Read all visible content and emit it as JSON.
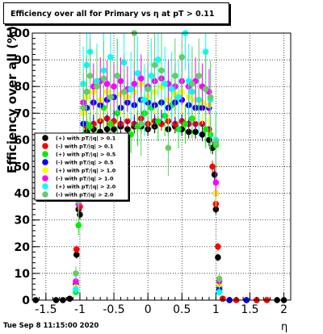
{
  "title": "Efficiency over all for Primary vs   η at pT > 0.11",
  "timestamp": "Tue Sep  8 11:15:00 2020",
  "chart_data": {
    "type": "scatter",
    "xlabel": "η",
    "ylabel": "Efficiency over all (%)",
    "xlim": [
      -1.7,
      2.1
    ],
    "ylim": [
      0,
      100
    ],
    "xticks": [
      -1.5,
      -1,
      -0.5,
      0,
      0.5,
      1,
      1.5,
      2
    ],
    "xtick_labels": [
      "-1.5",
      "-1",
      "-0.5",
      "0",
      "0.5",
      "1",
      "1.5",
      "2"
    ],
    "yticks": [
      0,
      10,
      20,
      30,
      40,
      50,
      60,
      70,
      80,
      90,
      100
    ],
    "ytick_labels": [
      "0",
      "10",
      "20",
      "30",
      "40",
      "50",
      "60",
      "70",
      "80",
      "90",
      "100"
    ],
    "grid": true,
    "legend_position": "left-middle",
    "series": [
      {
        "name": "(+) with pT/|q| > 0.1",
        "color": "#000000",
        "x": [
          -1.65,
          -1.35,
          -1.25,
          -1.15,
          -1.05,
          -1.02,
          -1.0,
          -0.95,
          -0.9,
          -0.8,
          -0.7,
          -0.6,
          -0.5,
          -0.4,
          -0.3,
          -0.2,
          -0.1,
          0,
          0.1,
          0.2,
          0.3,
          0.4,
          0.5,
          0.6,
          0.7,
          0.8,
          0.9,
          0.95,
          0.98,
          1.0,
          1.03,
          1.05,
          1.1,
          1.2,
          1.3,
          1.45,
          1.6,
          1.75,
          1.9,
          2.0
        ],
        "y": [
          0,
          0,
          0,
          0.5,
          17,
          34,
          32,
          58,
          63,
          64,
          63,
          64,
          64,
          65,
          64,
          65,
          65,
          64,
          65,
          66,
          64,
          65,
          64,
          63,
          63,
          62,
          60,
          57,
          47,
          34,
          16,
          3,
          0.5,
          0,
          0,
          0,
          0,
          0,
          0,
          0
        ]
      },
      {
        "name": "(-) with pT/|q| > 0.1",
        "color": "#ff0000",
        "x": [
          -1.05,
          -1.0,
          -0.95,
          -0.9,
          -0.8,
          -0.7,
          -0.6,
          -0.5,
          -0.4,
          -0.3,
          -0.2,
          -0.1,
          0,
          0.1,
          0.2,
          0.3,
          0.4,
          0.5,
          0.6,
          0.7,
          0.8,
          0.9,
          0.95,
          1.0,
          1.03,
          1.05,
          1.1,
          1.2,
          1.3,
          1.45,
          1.6,
          1.75
        ],
        "y": [
          19,
          35,
          61,
          65,
          66,
          67,
          68,
          67,
          66,
          67,
          66,
          68,
          66,
          67,
          66,
          67,
          66,
          67,
          66,
          66,
          66,
          64,
          50,
          36,
          20,
          5,
          0.5,
          0,
          0,
          0,
          0,
          0
        ]
      },
      {
        "name": "(+) with pT/|q| > 0.5",
        "color": "#00ee00",
        "x": [
          -1.06,
          -1.02,
          -0.95,
          -0.9,
          -0.85,
          -0.75,
          -0.65,
          -0.55,
          -0.45,
          -0.35,
          -0.25,
          -0.15,
          -0.05,
          0.05,
          0.15,
          0.25,
          0.35,
          0.45,
          0.55,
          0.65,
          0.75,
          0.85,
          0.92,
          1.0,
          1.05
        ],
        "y": [
          3,
          28,
          62,
          66,
          65,
          60,
          72,
          66,
          70,
          78,
          62,
          65,
          70,
          72,
          67,
          69,
          73,
          64,
          66,
          68,
          72,
          64,
          62,
          58,
          5
        ]
      },
      {
        "name": "(-) with pT/|q| > 0.5",
        "color": "#0000ff",
        "x": [
          -1.06,
          -1.02,
          -0.95,
          -0.9,
          -0.8,
          -0.7,
          -0.6,
          -0.5,
          -0.4,
          -0.3,
          -0.2,
          -0.1,
          0,
          0.1,
          0.2,
          0.3,
          0.4,
          0.5,
          0.6,
          0.7,
          0.8,
          0.9,
          1.0,
          1.05,
          1.2,
          1.45
        ],
        "y": [
          6,
          38,
          66,
          72,
          74,
          73,
          75,
          76,
          72,
          74,
          73,
          75,
          74,
          73,
          74,
          72,
          74,
          75,
          73,
          72,
          72,
          72,
          40,
          4,
          0,
          0
        ]
      },
      {
        "name": "(+) with pT/|q| > 1.0",
        "color": "#ffff00",
        "x": [
          -1.06,
          -1.02,
          -0.95,
          -0.9,
          -0.8,
          -0.7,
          -0.6,
          -0.5,
          -0.4,
          -0.3,
          -0.2,
          -0.1,
          0,
          0.1,
          0.2,
          0.3,
          0.4,
          0.5,
          0.6,
          0.7,
          0.8,
          0.9,
          1.0,
          1.05
        ],
        "y": [
          5,
          38,
          70,
          76,
          78,
          75,
          78,
          80,
          77,
          76,
          78,
          81,
          76,
          78,
          80,
          75,
          77,
          78,
          76,
          75,
          74,
          73,
          40,
          6
        ]
      },
      {
        "name": "(-) with pT/|q| > 1.0",
        "color": "#ff00ff",
        "x": [
          -1.06,
          -1.02,
          -0.95,
          -0.9,
          -0.8,
          -0.7,
          -0.6,
          -0.5,
          -0.4,
          -0.3,
          -0.2,
          -0.1,
          0,
          0.1,
          0.2,
          0.3,
          0.4,
          0.5,
          0.6,
          0.7,
          0.8,
          0.9,
          1.0,
          1.05
        ],
        "y": [
          7,
          36,
          74,
          78,
          80,
          82,
          81,
          80,
          82,
          79,
          81,
          83,
          80,
          82,
          83,
          81,
          80,
          82,
          80,
          82,
          80,
          78,
          44,
          7
        ]
      },
      {
        "name": "(+) with pT/|q| > 2.0",
        "color": "#00ffff",
        "x": [
          -1.06,
          -1.02,
          -0.95,
          -0.9,
          -0.85,
          -0.75,
          -0.65,
          -0.55,
          -0.45,
          -0.35,
          -0.25,
          -0.15,
          -0.05,
          0.05,
          0.15,
          0.25,
          0.35,
          0.45,
          0.55,
          0.6,
          0.65,
          0.75,
          0.85,
          0.92,
          1.0,
          1.05
        ],
        "y": [
          4,
          40,
          81,
          88,
          93,
          82,
          86,
          91,
          84,
          89,
          79,
          85,
          75,
          84,
          90,
          81,
          79,
          76,
          100,
          82,
          78,
          75,
          93,
          75,
          60,
          3
        ]
      },
      {
        "name": "(-) with pT/|q| > 2.0",
        "color": "#66cc66",
        "x": [
          -1.06,
          -1.02,
          -0.95,
          -0.9,
          -0.85,
          -0.75,
          -0.65,
          -0.55,
          -0.45,
          -0.35,
          -0.2,
          -0.1,
          0,
          0.1,
          0.2,
          0.3,
          0.4,
          0.5,
          0.65,
          0.75,
          0.85,
          0.92,
          1.0,
          1.05
        ],
        "y": [
          10,
          37,
          72,
          78,
          84,
          80,
          83,
          76,
          84,
          78,
          100,
          66,
          79,
          88,
          86,
          57,
          84,
          91,
          81,
          84,
          79,
          76,
          59,
          8
        ]
      }
    ]
  }
}
